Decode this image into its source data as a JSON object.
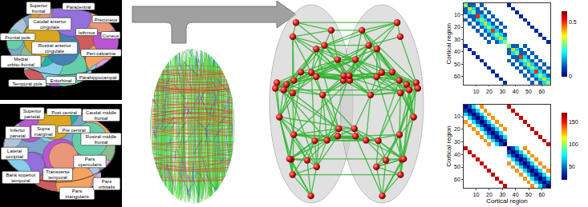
{
  "parcellation": {
    "medial_labels": [
      "Superior frontal",
      "Paracentral",
      "Precuneus",
      "Caudal anterior cingulate",
      "Isthmus",
      "Cuneus",
      "Frontal pole",
      "Rostral anterior cingulate",
      "Medial orbito-frontal",
      "Peri-calcarine",
      "Temporal pole",
      "Entorhinal",
      "Parahippocampal"
    ],
    "lateral_labels": [
      "Superior parietal",
      "Post central",
      "Caudal middle frontal",
      "Inferior parietal",
      "Supra marginal",
      "Pre central",
      "Rostral middle frontal",
      "Lateral occipital",
      "Pars opercularis",
      "Bank superior temporal",
      "Transverse temporal",
      "Pars triangularis",
      "Pars orbitalis"
    ]
  },
  "chart_data": [
    {
      "type": "heatmap",
      "ylabel": "Cortical region",
      "x": [
        2,
        5,
        8,
        11,
        14,
        17,
        20,
        23,
        26,
        29,
        32,
        35,
        38,
        41,
        44,
        47,
        50,
        53,
        56,
        59,
        62,
        65
      ],
      "y": [
        2,
        5,
        8,
        11,
        14,
        17,
        20,
        23,
        26,
        29,
        32,
        35,
        38,
        41,
        44,
        47,
        50,
        53,
        56,
        59,
        62,
        65
      ],
      "xlim": [
        0.5,
        66.5
      ],
      "ylim": [
        66.5,
        0.5
      ],
      "xticks": [
        10,
        20,
        30,
        40,
        50,
        60
      ],
      "yticks": [
        10,
        20,
        30,
        40,
        50,
        60
      ],
      "colorbar": {
        "range": [
          0,
          0.6
        ],
        "ticks": [
          0,
          0.5
        ]
      },
      "z": [
        [
          0.3,
          0.1,
          0.1,
          null,
          0.1,
          null,
          null,
          null,
          null,
          null,
          null,
          0.05,
          null,
          null,
          null,
          null,
          null,
          null,
          null,
          null,
          null,
          null
        ],
        [
          0.1,
          0.4,
          0.2,
          0.1,
          null,
          0.1,
          null,
          null,
          null,
          null,
          null,
          null,
          0.05,
          null,
          null,
          null,
          null,
          null,
          null,
          null,
          null,
          null
        ],
        [
          0.1,
          0.2,
          0.3,
          0.1,
          0.1,
          null,
          0.1,
          null,
          null,
          null,
          null,
          null,
          null,
          0.05,
          null,
          null,
          null,
          null,
          null,
          null,
          null,
          null
        ],
        [
          null,
          0.1,
          0.1,
          0.5,
          0.2,
          0.1,
          null,
          0.1,
          null,
          null,
          null,
          null,
          null,
          null,
          0.05,
          null,
          null,
          null,
          null,
          null,
          null,
          null
        ],
        [
          0.1,
          null,
          0.1,
          0.2,
          0.3,
          0.2,
          0.1,
          null,
          0.1,
          null,
          null,
          null,
          null,
          null,
          null,
          0.05,
          null,
          null,
          null,
          null,
          null,
          null
        ],
        [
          null,
          0.1,
          null,
          0.1,
          0.2,
          0.4,
          0.2,
          0.1,
          null,
          0.1,
          null,
          null,
          null,
          null,
          null,
          null,
          0.05,
          null,
          null,
          null,
          null,
          null
        ],
        [
          null,
          null,
          0.1,
          null,
          0.1,
          0.2,
          0.3,
          0.2,
          0.1,
          null,
          0.1,
          null,
          null,
          null,
          null,
          null,
          null,
          0.05,
          null,
          null,
          null,
          null
        ],
        [
          null,
          null,
          null,
          0.1,
          null,
          0.1,
          0.2,
          0.5,
          0.2,
          0.1,
          null,
          null,
          null,
          null,
          null,
          null,
          null,
          null,
          0.05,
          null,
          null,
          null
        ],
        [
          null,
          null,
          null,
          null,
          0.1,
          null,
          0.1,
          0.2,
          0.3,
          0.2,
          0.1,
          null,
          null,
          null,
          null,
          null,
          null,
          null,
          null,
          0.05,
          null,
          null
        ],
        [
          null,
          null,
          null,
          null,
          null,
          0.1,
          null,
          0.1,
          0.2,
          0.4,
          0.2,
          null,
          null,
          null,
          null,
          null,
          null,
          null,
          null,
          null,
          0.05,
          null
        ],
        [
          null,
          null,
          null,
          null,
          null,
          null,
          0.1,
          null,
          0.1,
          0.2,
          0.3,
          null,
          null,
          null,
          null,
          null,
          null,
          null,
          null,
          null,
          null,
          0.05
        ],
        [
          0.05,
          null,
          null,
          null,
          null,
          null,
          null,
          null,
          null,
          null,
          null,
          0.3,
          0.1,
          0.1,
          null,
          0.1,
          null,
          null,
          null,
          null,
          null,
          null
        ],
        [
          null,
          0.05,
          null,
          null,
          null,
          null,
          null,
          null,
          null,
          null,
          null,
          0.1,
          0.4,
          0.2,
          0.1,
          null,
          0.1,
          null,
          null,
          null,
          null,
          null
        ],
        [
          null,
          null,
          0.05,
          null,
          null,
          null,
          null,
          null,
          null,
          null,
          null,
          0.1,
          0.2,
          0.3,
          0.1,
          0.1,
          null,
          0.1,
          null,
          null,
          null,
          null
        ],
        [
          null,
          null,
          null,
          0.05,
          null,
          null,
          null,
          null,
          null,
          null,
          null,
          null,
          0.1,
          0.1,
          0.5,
          0.2,
          0.1,
          null,
          0.1,
          null,
          null,
          null
        ],
        [
          null,
          null,
          null,
          null,
          0.05,
          null,
          null,
          null,
          null,
          null,
          null,
          0.1,
          null,
          0.1,
          0.2,
          0.3,
          0.2,
          0.1,
          null,
          0.1,
          null,
          null
        ],
        [
          null,
          null,
          null,
          null,
          null,
          0.05,
          null,
          null,
          null,
          null,
          null,
          null,
          0.1,
          null,
          0.1,
          0.2,
          0.4,
          0.2,
          0.1,
          null,
          0.1,
          null
        ],
        [
          null,
          null,
          null,
          null,
          null,
          null,
          0.05,
          null,
          null,
          null,
          null,
          null,
          null,
          0.1,
          null,
          0.1,
          0.2,
          0.3,
          0.2,
          0.1,
          null,
          0.1
        ],
        [
          null,
          null,
          null,
          null,
          null,
          null,
          null,
          0.05,
          null,
          null,
          null,
          null,
          null,
          null,
          0.1,
          null,
          0.1,
          0.2,
          0.5,
          0.2,
          0.1,
          null
        ],
        [
          null,
          null,
          null,
          null,
          null,
          null,
          null,
          null,
          0.05,
          null,
          null,
          null,
          null,
          null,
          null,
          0.1,
          null,
          0.1,
          0.2,
          0.3,
          0.2,
          0.1
        ],
        [
          null,
          null,
          null,
          null,
          null,
          null,
          null,
          null,
          null,
          0.05,
          null,
          null,
          null,
          null,
          null,
          null,
          0.1,
          null,
          0.1,
          0.2,
          0.4,
          0.2
        ],
        [
          null,
          null,
          null,
          null,
          null,
          null,
          null,
          null,
          null,
          null,
          0.05,
          null,
          null,
          null,
          null,
          null,
          null,
          0.1,
          null,
          0.1,
          0.2,
          0.3
        ]
      ]
    },
    {
      "type": "heatmap",
      "xlabel": "Cortical region",
      "ylabel": "Cortical region",
      "x": [
        2,
        5,
        8,
        11,
        14,
        17,
        20,
        23,
        26,
        29,
        32,
        35,
        38,
        41,
        44,
        47,
        50,
        53,
        56,
        59,
        62,
        65
      ],
      "y": [
        2,
        5,
        8,
        11,
        14,
        17,
        20,
        23,
        26,
        29,
        32,
        35,
        38,
        41,
        44,
        47,
        50,
        53,
        56,
        59,
        62,
        65
      ],
      "xlim": [
        0.5,
        66.5
      ],
      "ylim": [
        66.5,
        0.5
      ],
      "xticks": [
        10,
        20,
        30,
        40,
        50,
        60
      ],
      "yticks": [
        10,
        20,
        30,
        40,
        50,
        60
      ],
      "colorbar": {
        "range": [
          20,
          170
        ],
        "ticks": [
          50,
          100,
          150
        ]
      },
      "z": [
        [
          20,
          40,
          70,
          null,
          130,
          null,
          null,
          null,
          null,
          null,
          null,
          160,
          null,
          null,
          null,
          null,
          null,
          null,
          null,
          null,
          null,
          null
        ],
        [
          40,
          20,
          40,
          70,
          null,
          130,
          null,
          null,
          null,
          null,
          null,
          null,
          160,
          null,
          null,
          null,
          null,
          null,
          null,
          null,
          null,
          null
        ],
        [
          70,
          40,
          20,
          40,
          70,
          null,
          130,
          null,
          null,
          null,
          null,
          null,
          null,
          160,
          null,
          null,
          null,
          null,
          null,
          null,
          null,
          null
        ],
        [
          null,
          70,
          40,
          20,
          40,
          70,
          null,
          130,
          null,
          null,
          null,
          null,
          null,
          null,
          160,
          null,
          null,
          null,
          null,
          null,
          null,
          null
        ],
        [
          130,
          null,
          70,
          40,
          20,
          40,
          70,
          null,
          130,
          null,
          null,
          null,
          null,
          null,
          null,
          160,
          null,
          null,
          null,
          null,
          null,
          null
        ],
        [
          null,
          130,
          null,
          70,
          40,
          20,
          40,
          70,
          null,
          130,
          null,
          null,
          null,
          null,
          null,
          null,
          160,
          null,
          null,
          null,
          null,
          null
        ],
        [
          null,
          null,
          130,
          null,
          70,
          40,
          20,
          40,
          70,
          null,
          130,
          null,
          null,
          null,
          null,
          null,
          null,
          160,
          null,
          null,
          null,
          null
        ],
        [
          null,
          null,
          null,
          130,
          null,
          70,
          40,
          20,
          40,
          70,
          null,
          null,
          null,
          null,
          null,
          null,
          null,
          null,
          160,
          null,
          null,
          null
        ],
        [
          null,
          null,
          null,
          null,
          130,
          null,
          70,
          40,
          20,
          40,
          70,
          null,
          null,
          null,
          null,
          null,
          null,
          null,
          null,
          160,
          null,
          null
        ],
        [
          null,
          null,
          null,
          null,
          null,
          130,
          null,
          70,
          40,
          20,
          40,
          null,
          null,
          null,
          null,
          null,
          null,
          null,
          null,
          null,
          160,
          null
        ],
        [
          null,
          null,
          null,
          null,
          null,
          null,
          130,
          null,
          70,
          40,
          20,
          null,
          null,
          null,
          null,
          null,
          null,
          null,
          null,
          null,
          null,
          160
        ],
        [
          160,
          null,
          null,
          null,
          null,
          null,
          null,
          null,
          null,
          null,
          null,
          20,
          40,
          70,
          null,
          130,
          null,
          null,
          null,
          null,
          null,
          null
        ],
        [
          null,
          160,
          null,
          null,
          null,
          null,
          null,
          null,
          null,
          null,
          null,
          40,
          20,
          40,
          70,
          null,
          130,
          null,
          null,
          null,
          null,
          null
        ],
        [
          null,
          null,
          160,
          null,
          null,
          null,
          null,
          null,
          null,
          null,
          null,
          70,
          40,
          20,
          40,
          70,
          null,
          130,
          null,
          null,
          null,
          null
        ],
        [
          null,
          null,
          null,
          160,
          null,
          null,
          null,
          null,
          null,
          null,
          null,
          null,
          70,
          40,
          20,
          40,
          70,
          null,
          130,
          null,
          null,
          null
        ],
        [
          null,
          null,
          null,
          null,
          160,
          null,
          null,
          null,
          null,
          null,
          null,
          130,
          null,
          70,
          40,
          20,
          40,
          70,
          null,
          130,
          null,
          null
        ],
        [
          null,
          null,
          null,
          null,
          null,
          160,
          null,
          null,
          null,
          null,
          null,
          null,
          130,
          null,
          70,
          40,
          20,
          40,
          70,
          null,
          130,
          null
        ],
        [
          null,
          null,
          null,
          null,
          null,
          null,
          160,
          null,
          null,
          null,
          null,
          null,
          null,
          130,
          null,
          70,
          40,
          20,
          40,
          70,
          null,
          130
        ],
        [
          null,
          null,
          null,
          null,
          null,
          null,
          null,
          160,
          null,
          null,
          null,
          null,
          null,
          null,
          130,
          null,
          70,
          40,
          20,
          40,
          70,
          null
        ],
        [
          null,
          null,
          null,
          null,
          null,
          null,
          null,
          null,
          160,
          null,
          null,
          null,
          null,
          null,
          null,
          130,
          null,
          70,
          40,
          20,
          40,
          70
        ],
        [
          null,
          null,
          null,
          null,
          null,
          null,
          null,
          null,
          null,
          160,
          null,
          null,
          null,
          null,
          null,
          null,
          130,
          null,
          70,
          40,
          20,
          40
        ],
        [
          null,
          null,
          null,
          null,
          null,
          null,
          null,
          null,
          null,
          null,
          160,
          null,
          null,
          null,
          null,
          null,
          null,
          130,
          null,
          70,
          40,
          20
        ]
      ]
    }
  ]
}
